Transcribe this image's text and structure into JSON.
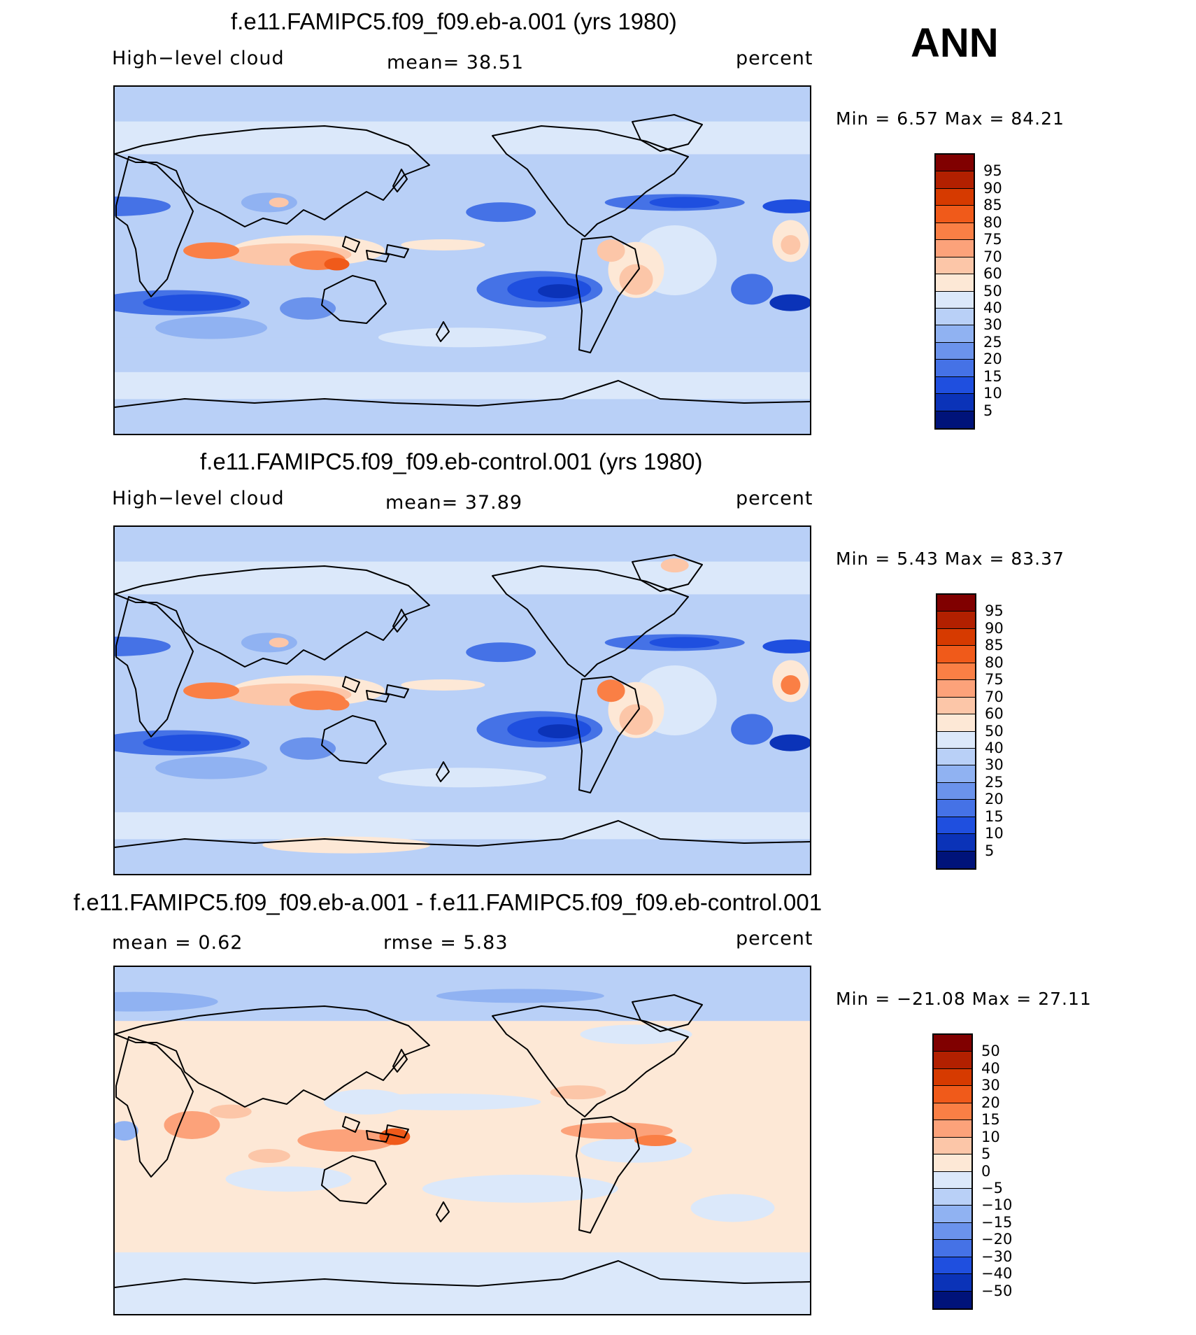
{
  "season": "ANN",
  "panels": [
    {
      "title": "f.e11.FAMIPC5.f09_f09.eb-a.001 (yrs 1980)",
      "left_label": "High−level cloud",
      "center_label": "mean=   38.51",
      "units": "percent",
      "minmax": "Min  =     6.57  Max  =     84.21",
      "colorbar_labels": [
        "95",
        "90",
        "85",
        "80",
        "75",
        "70",
        "60",
        "50",
        "40",
        "30",
        "25",
        "20",
        "15",
        "10",
        "5"
      ],
      "colors": [
        "#800000",
        "#b22000",
        "#d63a00",
        "#f05a1a",
        "#fa7f45",
        "#fca27a",
        "#fcc6a8",
        "#fde8d6",
        "#dbe8fa",
        "#b9d0f7",
        "#90b2f2",
        "#6b93ec",
        "#4572e6",
        "#1f4fdf",
        "#0b33b8",
        "#00137a"
      ]
    },
    {
      "title": "f.e11.FAMIPC5.f09_f09.eb-control.001 (yrs 1980)",
      "left_label": "High−level cloud",
      "center_label": "mean=   37.89",
      "units": "percent",
      "minmax": "Min  =     5.43  Max  =     83.37",
      "colorbar_labels": [
        "95",
        "90",
        "85",
        "80",
        "75",
        "70",
        "60",
        "50",
        "40",
        "30",
        "25",
        "20",
        "15",
        "10",
        "5"
      ],
      "colors": [
        "#800000",
        "#b22000",
        "#d63a00",
        "#f05a1a",
        "#fa7f45",
        "#fca27a",
        "#fcc6a8",
        "#fde8d6",
        "#dbe8fa",
        "#b9d0f7",
        "#90b2f2",
        "#6b93ec",
        "#4572e6",
        "#1f4fdf",
        "#0b33b8",
        "#00137a"
      ]
    },
    {
      "title": "f.e11.FAMIPC5.f09_f09.eb-a.001 - f.e11.FAMIPC5.f09_f09.eb-control.001",
      "left_label": "mean  =     0.62",
      "center_label": "rmse  =     5.83",
      "units": "percent",
      "minmax": "Min  =  −21.08  Max  =     27.11",
      "colorbar_labels": [
        "50",
        "40",
        "30",
        "20",
        "15",
        "10",
        "5",
        "0",
        "−5",
        "−10",
        "−15",
        "−20",
        "−30",
        "−40",
        "−50"
      ],
      "colors": [
        "#800000",
        "#b22000",
        "#d63a00",
        "#f05a1a",
        "#fa7f45",
        "#fca27a",
        "#fcc6a8",
        "#fde8d6",
        "#dbe8fa",
        "#b9d0f7",
        "#90b2f2",
        "#6b93ec",
        "#4572e6",
        "#1f4fdf",
        "#0b33b8",
        "#00137a"
      ]
    }
  ]
}
